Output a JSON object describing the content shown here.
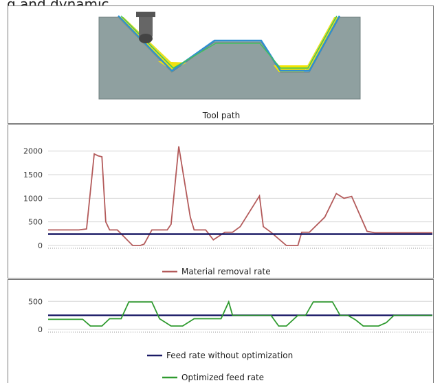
{
  "page": {
    "top_text": "g and dynamic"
  },
  "panel1": {
    "caption": "Tool path"
  },
  "chart_data": [
    {
      "type": "line",
      "title": "",
      "xlabel": "",
      "ylabel": "",
      "ylim": [
        0,
        2200
      ],
      "yticks": [
        0,
        500,
        1000,
        1500,
        2000
      ],
      "grid": true,
      "legend": "bottom-center",
      "series": [
        {
          "name": "Material removal rate",
          "color": "#b35a5a",
          "x": [
            0,
            8,
            10,
            12,
            13,
            14,
            15,
            16,
            18,
            22,
            24,
            25,
            27,
            31,
            32,
            34,
            37,
            38,
            39,
            40,
            41,
            43,
            46,
            48,
            50,
            55,
            56,
            58,
            62,
            64,
            65,
            66,
            68,
            72,
            75,
            77,
            79,
            83,
            85,
            86,
            87,
            88,
            89,
            90,
            100
          ],
          "y": [
            330,
            330,
            350,
            1940,
            1900,
            1880,
            500,
            330,
            330,
            0,
            0,
            30,
            330,
            330,
            450,
            2100,
            600,
            330,
            330,
            330,
            330,
            120,
            280,
            280,
            400,
            1050,
            400,
            280,
            0,
            0,
            0,
            280,
            280,
            600,
            1100,
            1000,
            1040,
            300,
            270,
            270,
            270,
            270,
            270,
            270,
            270
          ]
        },
        {
          "name": "Feed rate without optimization",
          "color": "#1a1a66",
          "x": [
            0,
            100
          ],
          "y": [
            240,
            240
          ]
        }
      ]
    },
    {
      "type": "line",
      "title": "",
      "xlabel": "",
      "ylabel": "",
      "ylim": [
        0,
        700
      ],
      "yticks": [
        0,
        500
      ],
      "grid": true,
      "legend": "bottom-center",
      "series": [
        {
          "name": "Feed rate without optimization",
          "color": "#1a1a66",
          "x": [
            0,
            100
          ],
          "y": [
            250,
            250
          ]
        },
        {
          "name": "Optimized feed rate",
          "color": "#2e9a2e",
          "x": [
            0,
            9,
            11,
            14,
            16,
            19,
            21,
            27,
            29,
            32,
            35,
            38,
            40,
            43,
            45,
            47,
            48,
            49,
            50,
            58,
            60,
            62,
            65,
            67,
            69,
            74,
            76,
            78,
            80,
            82,
            84,
            86,
            88,
            90,
            93,
            100
          ],
          "y": [
            180,
            180,
            60,
            60,
            190,
            190,
            490,
            490,
            190,
            60,
            60,
            190,
            190,
            190,
            190,
            490,
            250,
            250,
            250,
            250,
            60,
            60,
            250,
            250,
            490,
            490,
            250,
            250,
            170,
            60,
            60,
            60,
            120,
            250,
            250,
            250
          ]
        }
      ]
    }
  ]
}
